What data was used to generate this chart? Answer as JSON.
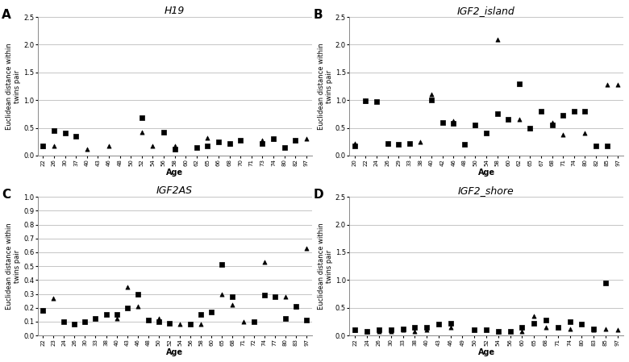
{
  "panels": [
    {
      "label": "A",
      "title": "H19",
      "ylim": [
        0,
        2.5
      ],
      "yticks": [
        0,
        0.5,
        1.0,
        1.5,
        2.0,
        2.5
      ],
      "xtick_labels": [
        "22",
        "26",
        "30",
        "37",
        "40",
        "43",
        "46",
        "48",
        "50",
        "52",
        "54",
        "56",
        "58",
        "60",
        "62",
        "65",
        "66",
        "68",
        "70",
        "71",
        "73",
        "74",
        "80",
        "82",
        "97"
      ],
      "squares": {
        "x_labels": [
          "22",
          "26",
          "30",
          "37",
          "52",
          "56",
          "58",
          "62",
          "65",
          "66",
          "68",
          "70",
          "73",
          "74",
          "80",
          "82"
        ],
        "vals": [
          0.18,
          0.45,
          0.4,
          0.35,
          0.68,
          0.42,
          0.12,
          0.15,
          0.18,
          0.25,
          0.22,
          0.28,
          0.22,
          0.3,
          0.15,
          0.28
        ]
      },
      "triangles": {
        "x_labels": [
          "22",
          "26",
          "40",
          "46",
          "52",
          "54",
          "58",
          "65",
          "68",
          "73",
          "74",
          "82",
          "97"
        ],
        "vals": [
          0.17,
          0.17,
          0.12,
          0.17,
          0.42,
          0.18,
          0.18,
          0.32,
          0.22,
          0.28,
          0.3,
          0.28,
          0.3
        ]
      }
    },
    {
      "label": "B",
      "title": "IGF2_island",
      "ylim": [
        0,
        2.5
      ],
      "yticks": [
        0,
        0.5,
        1.0,
        1.5,
        2.0,
        2.5
      ],
      "xtick_labels": [
        "20",
        "22",
        "24",
        "26",
        "29",
        "33",
        "38",
        "40",
        "42",
        "46",
        "48",
        "50",
        "54",
        "58",
        "60",
        "62",
        "65",
        "67",
        "68",
        "71",
        "74",
        "80",
        "82",
        "85",
        "97"
      ],
      "squares": {
        "x_labels": [
          "20",
          "22",
          "24",
          "26",
          "29",
          "33",
          "40",
          "42",
          "46",
          "48",
          "50",
          "54",
          "58",
          "60",
          "62",
          "65",
          "67",
          "68",
          "71",
          "74",
          "80",
          "82",
          "85"
        ],
        "vals": [
          0.18,
          0.99,
          0.97,
          0.22,
          0.2,
          0.22,
          1.0,
          0.6,
          0.58,
          0.2,
          0.55,
          0.4,
          0.75,
          0.65,
          1.3,
          0.5,
          0.8,
          0.55,
          0.72,
          0.8,
          0.8,
          0.18,
          0.18
        ]
      },
      "triangles": {
        "x_labels": [
          "20",
          "22",
          "26",
          "38",
          "40",
          "46",
          "50",
          "58",
          "62",
          "65",
          "68",
          "71",
          "80",
          "85",
          "97"
        ],
        "vals": [
          0.22,
          0.99,
          0.22,
          0.25,
          1.1,
          0.62,
          0.55,
          2.1,
          0.65,
          0.5,
          0.6,
          0.38,
          0.4,
          1.28,
          1.28
        ]
      }
    },
    {
      "label": "C",
      "title": "IGF2AS",
      "ylim": [
        0,
        1.0
      ],
      "yticks": [
        0,
        0.1,
        0.2,
        0.3,
        0.4,
        0.5,
        0.6,
        0.7,
        0.8,
        0.9,
        1.0
      ],
      "xtick_labels": [
        "22",
        "23",
        "24",
        "26",
        "30",
        "33",
        "38",
        "40",
        "43",
        "46",
        "48",
        "50",
        "52",
        "54",
        "56",
        "58",
        "60",
        "65",
        "68",
        "71",
        "72",
        "74",
        "77",
        "80",
        "83",
        "97"
      ],
      "squares": {
        "x_labels": [
          "22",
          "24",
          "26",
          "30",
          "33",
          "38",
          "40",
          "43",
          "46",
          "48",
          "50",
          "52",
          "56",
          "58",
          "60",
          "65",
          "68",
          "72",
          "74",
          "77",
          "80",
          "83",
          "97"
        ],
        "vals": [
          0.18,
          0.1,
          0.08,
          0.1,
          0.12,
          0.15,
          0.15,
          0.2,
          0.3,
          0.11,
          0.1,
          0.09,
          0.08,
          0.15,
          0.17,
          0.51,
          0.28,
          0.1,
          0.29,
          0.28,
          0.12,
          0.21,
          0.11
        ]
      },
      "triangles": {
        "x_labels": [
          "22",
          "23",
          "30",
          "40",
          "43",
          "46",
          "50",
          "54",
          "58",
          "65",
          "68",
          "71",
          "74",
          "80",
          "83",
          "97"
        ],
        "vals": [
          0.18,
          0.27,
          0.1,
          0.12,
          0.35,
          0.21,
          0.12,
          0.08,
          0.08,
          0.3,
          0.22,
          0.1,
          0.53,
          0.28,
          0.21,
          0.63
        ]
      }
    },
    {
      "label": "D",
      "title": "IGF2_shore",
      "ylim": [
        0,
        2.5
      ],
      "yticks": [
        0,
        0.5,
        1.0,
        1.5,
        2.0,
        2.5
      ],
      "xtick_labels": [
        "22",
        "24",
        "26",
        "30",
        "33",
        "38",
        "40",
        "43",
        "46",
        "49",
        "50",
        "52",
        "54",
        "56",
        "60",
        "65",
        "68",
        "71",
        "74",
        "80",
        "83",
        "85",
        "97"
      ],
      "squares": {
        "x_labels": [
          "22",
          "24",
          "26",
          "30",
          "33",
          "38",
          "40",
          "43",
          "46",
          "50",
          "52",
          "54",
          "56",
          "60",
          "65",
          "68",
          "71",
          "74",
          "80",
          "83",
          "85"
        ],
        "vals": [
          0.1,
          0.08,
          0.1,
          0.1,
          0.12,
          0.15,
          0.15,
          0.2,
          0.22,
          0.1,
          0.1,
          0.08,
          0.08,
          0.15,
          0.22,
          0.28,
          0.15,
          0.25,
          0.2,
          0.12,
          0.95
        ]
      },
      "triangles": {
        "x_labels": [
          "22",
          "24",
          "26",
          "30",
          "33",
          "38",
          "40",
          "46",
          "54",
          "60",
          "65",
          "68",
          "74",
          "83",
          "85",
          "97"
        ],
        "vals": [
          0.1,
          0.08,
          0.08,
          0.08,
          0.1,
          0.08,
          0.1,
          0.15,
          0.08,
          0.08,
          0.35,
          0.15,
          0.12,
          0.1,
          0.12,
          0.1
        ]
      }
    }
  ],
  "xlabel": "Age",
  "ylabel": "Euclidean distance within\ntwins pair",
  "marker_square": "s",
  "marker_triangle": "^",
  "marker_color": "black",
  "marker_size": 14,
  "grid_color": "#bbbbbb",
  "background_color": "white",
  "tick_label_size": 5,
  "ytick_label_size": 6,
  "axis_label_size": 7,
  "ylabel_size": 6,
  "title_size": 9,
  "panel_label_size": 11
}
